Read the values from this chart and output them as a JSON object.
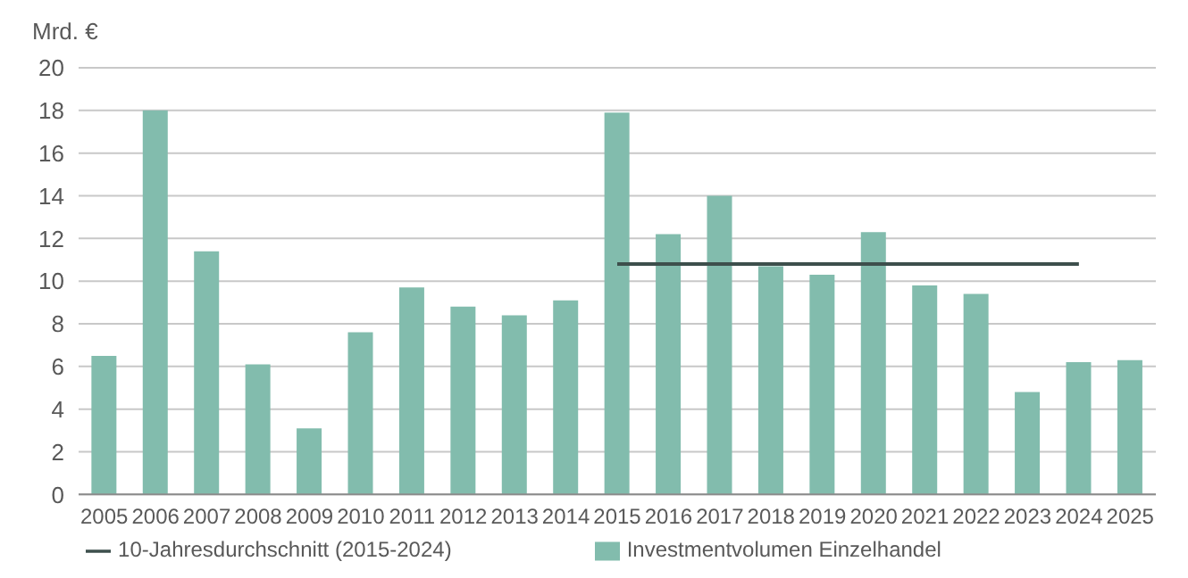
{
  "chart_data": {
    "type": "bar",
    "ylabel": "Mrd. €",
    "categories": [
      "2005",
      "2006",
      "2007",
      "2008",
      "2009",
      "2010",
      "2011",
      "2012",
      "2013",
      "2014",
      "2015",
      "2016",
      "2017",
      "2018",
      "2019",
      "2020",
      "2021",
      "2022",
      "2023",
      "2024",
      "2025"
    ],
    "series": [
      {
        "name": "Investmentvolumen Einzelhandel",
        "color": "#82bcad",
        "values": [
          6.5,
          18.0,
          11.4,
          6.1,
          3.1,
          7.6,
          9.7,
          8.8,
          8.4,
          9.1,
          17.9,
          12.2,
          14.0,
          10.7,
          10.3,
          12.3,
          9.8,
          9.4,
          4.8,
          6.2,
          6.3
        ]
      },
      {
        "name": "10-Jahresdurchschnitt (2015-2024)",
        "type": "line",
        "color": "#3d4f4c",
        "values": [
          null,
          null,
          null,
          null,
          null,
          null,
          null,
          null,
          null,
          null,
          10.8,
          10.8,
          10.8,
          10.8,
          10.8,
          10.8,
          10.8,
          10.8,
          10.8,
          10.8,
          null
        ]
      }
    ],
    "ylim": [
      0,
      20
    ],
    "yticks": [
      0,
      2,
      4,
      6,
      8,
      10,
      12,
      14,
      16,
      18,
      20
    ],
    "grid": "y",
    "legend": "bottom",
    "marker": "none"
  }
}
